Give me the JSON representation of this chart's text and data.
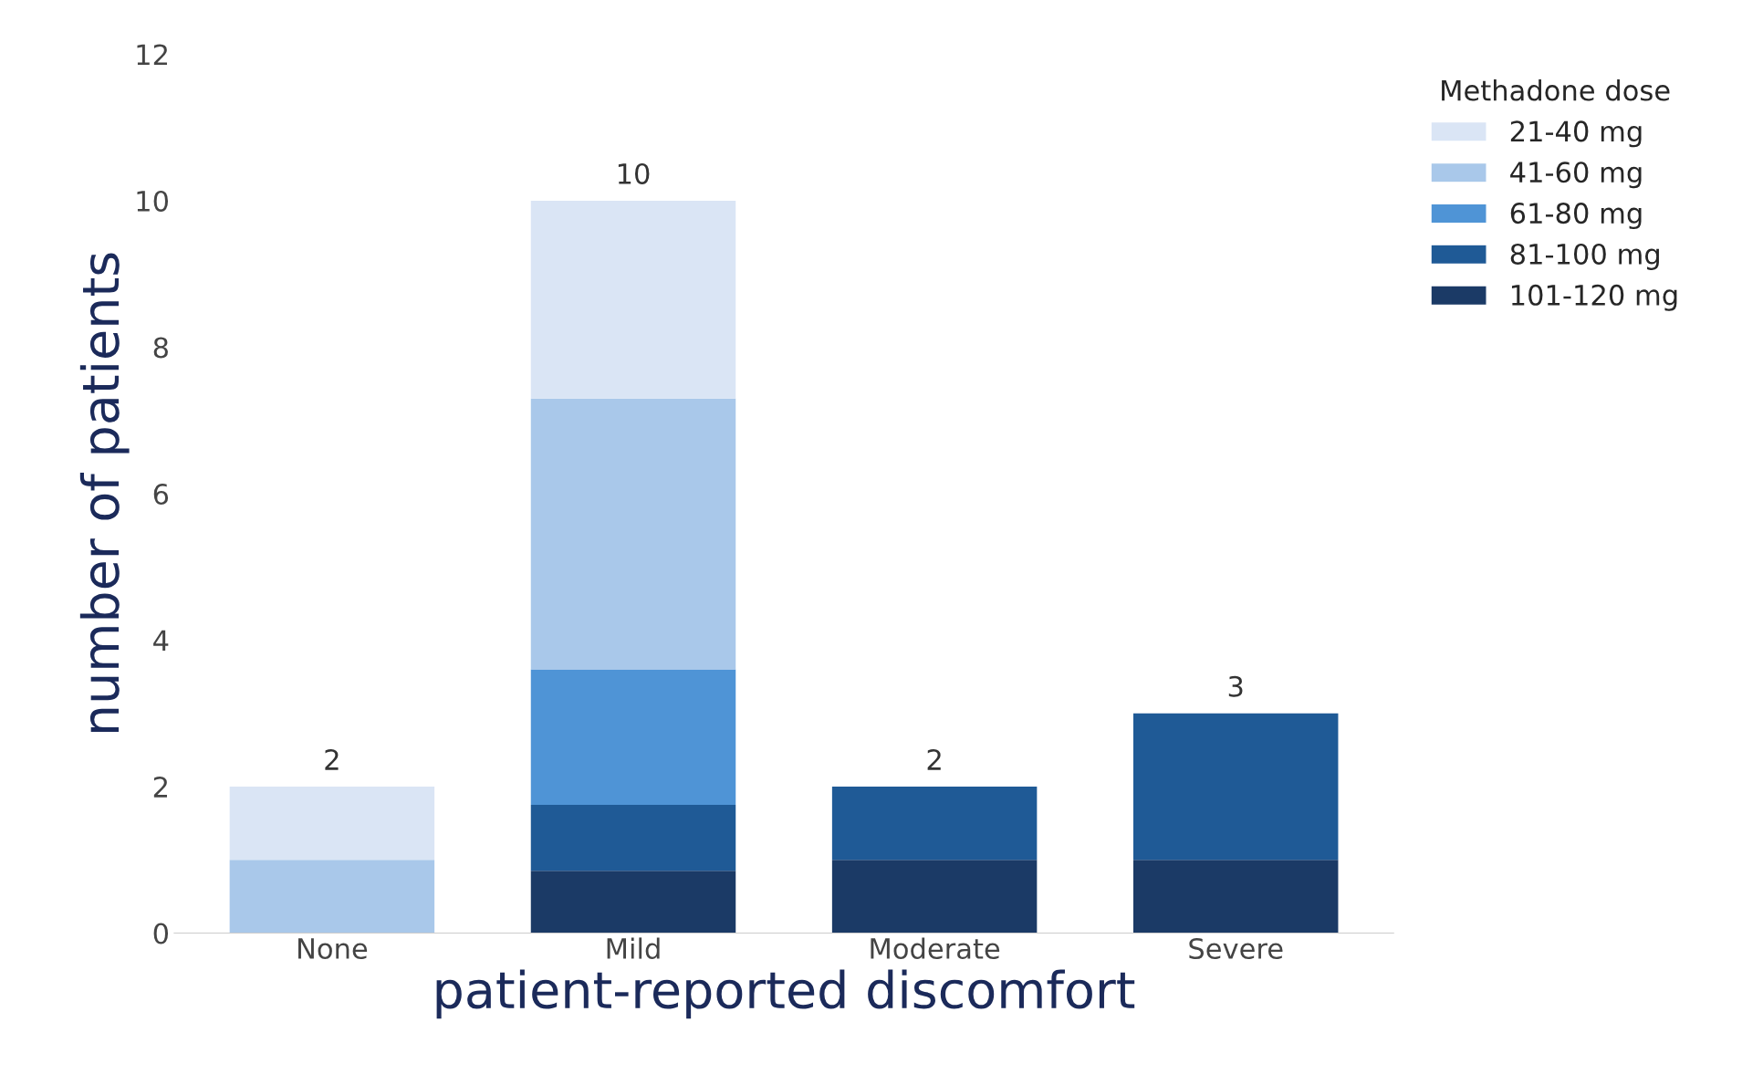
{
  "chart_data": {
    "type": "bar",
    "stacked": true,
    "xlabel": "patient-reported discomfort",
    "ylabel": "number of patients",
    "legend_title": "Methadone dose",
    "legend": "top right",
    "categories": [
      "None",
      "Mild",
      "Moderate",
      "Severe"
    ],
    "series": [
      {
        "name": "101-120 mg",
        "color": "#1b3a66",
        "values": [
          null,
          0.85,
          1,
          1
        ]
      },
      {
        "name": "81-100 mg",
        "color": "#1f5a96",
        "values": [
          null,
          0.9,
          1,
          2
        ]
      },
      {
        "name": "61-80 mg",
        "color": "#4f94d6",
        "values": [
          null,
          1.85,
          null,
          null
        ]
      },
      {
        "name": "41-60 mg",
        "color": "#a9c8ea",
        "values": [
          1,
          3.7,
          null,
          null
        ]
      },
      {
        "name": "21-40 mg",
        "color": "#dae5f5",
        "values": [
          1,
          2.7,
          null,
          null
        ]
      }
    ],
    "totals": [
      "2",
      "10",
      "2",
      "3"
    ],
    "ylim": [
      0,
      12
    ],
    "yticks": [
      0,
      2,
      4,
      6,
      8,
      10,
      12
    ],
    "grid": false
  }
}
